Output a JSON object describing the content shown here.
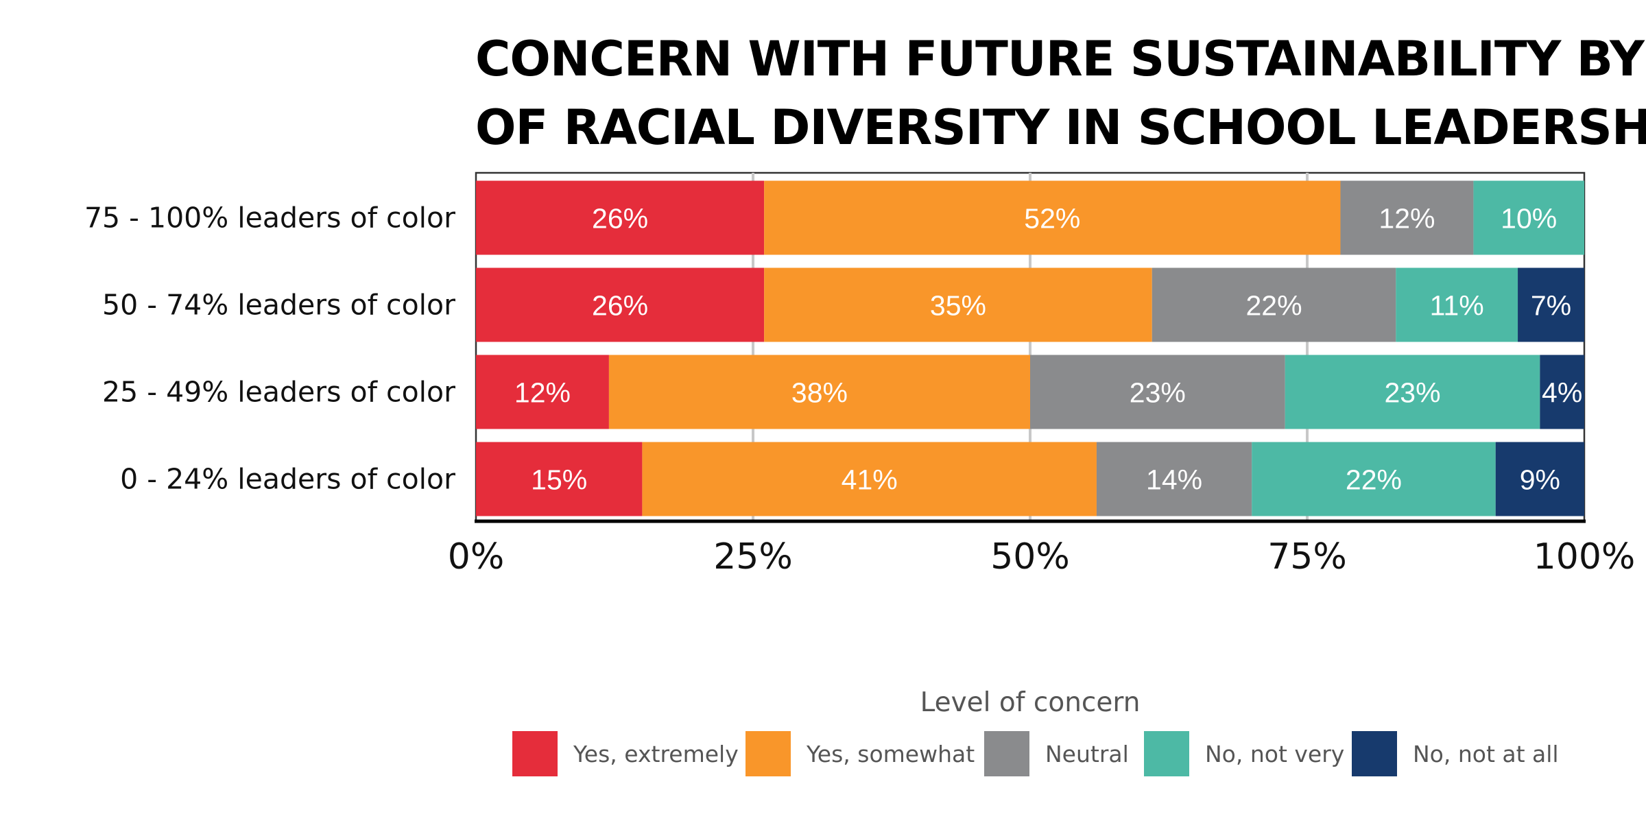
{
  "chart_data": {
    "type": "bar",
    "orientation": "horizontal",
    "stacked": true,
    "title_lines": [
      "CONCERN WITH FUTURE SUSTAINABILITY BY LEVEL",
      "OF RACIAL DIVERSITY IN SCHOOL LEADERSHIP"
    ],
    "categories": [
      "75 - 100% leaders of color",
      "50 - 74% leaders of color",
      "25 - 49% leaders of color",
      "0 - 24% leaders of color"
    ],
    "series": [
      {
        "name": "Yes, extremely",
        "color": "#E52D3B",
        "values": [
          26,
          26,
          12,
          15
        ],
        "labels": [
          "26%",
          "26%",
          "12%",
          "15%"
        ]
      },
      {
        "name": "Yes, somewhat",
        "color": "#F9962A",
        "values": [
          52,
          35,
          38,
          41
        ],
        "labels": [
          "52%",
          "35%",
          "38%",
          "41%"
        ]
      },
      {
        "name": "Neutral",
        "color": "#8A8B8D",
        "values": [
          12,
          22,
          23,
          14
        ],
        "labels": [
          "12%",
          "22%",
          "23%",
          "14%"
        ]
      },
      {
        "name": "No, not very",
        "color": "#4DB9A5",
        "values": [
          10,
          11,
          23,
          22
        ],
        "labels": [
          "10%",
          "11%",
          "23%",
          "22%"
        ]
      },
      {
        "name": "No, not at all",
        "color": "#173A6D",
        "values": [
          0,
          7,
          4,
          9
        ],
        "labels": [
          "",
          "7%",
          "4%",
          "9%"
        ]
      }
    ],
    "xlim": [
      0,
      100
    ],
    "x_ticks": [
      0,
      25,
      50,
      75,
      100
    ],
    "x_tick_labels": [
      "0%",
      "25%",
      "50%",
      "75%",
      "100%"
    ],
    "grid": true,
    "legend_title": "Level of concern",
    "legend_position": "bottom"
  }
}
